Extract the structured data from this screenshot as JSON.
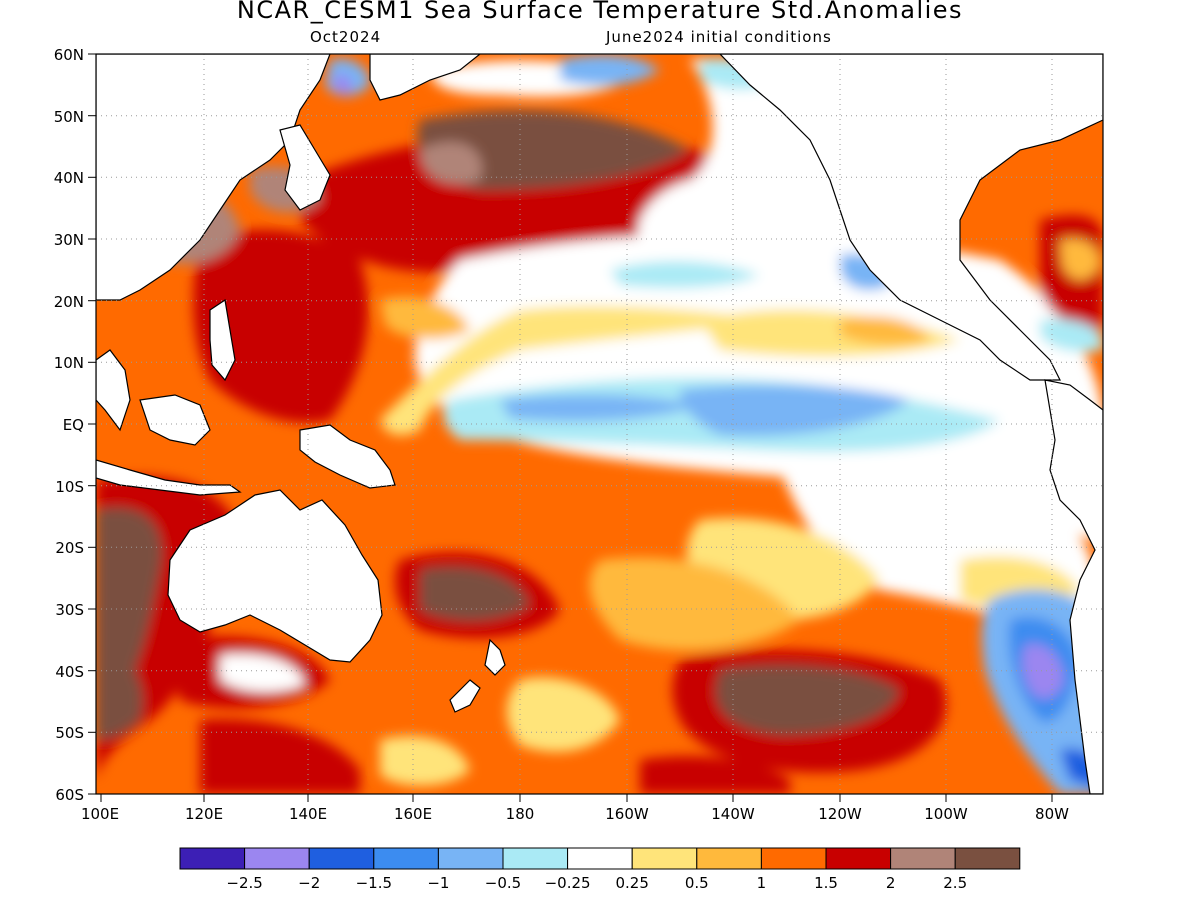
{
  "title": "NCAR_CESM1 Sea Surface Temperature Std.Anomalies",
  "subtitle_left": "Oct2024",
  "subtitle_right": "June2024 initial conditions",
  "lat_labels": [
    "60N",
    "50N",
    "40N",
    "30N",
    "20N",
    "10N",
    "EQ",
    "10S",
    "20S",
    "30S",
    "40S",
    "50S",
    "60S"
  ],
  "lon_labels": [
    "100E",
    "120E",
    "140E",
    "160E",
    "180",
    "160W",
    "140W",
    "120W",
    "100W",
    "80W"
  ],
  "colorbar": {
    "colors": [
      "#3c1fb5",
      "#9b86f0",
      "#1f5fe0",
      "#3c8cf0",
      "#78b4f5",
      "#aaeaf5",
      "#ffffff",
      "#ffe47a",
      "#ffb93c",
      "#ff6a00",
      "#c80000",
      "#b08478",
      "#7a5040"
    ],
    "labels": [
      "-2.5",
      "-2",
      "-1.5",
      "-1",
      "-0.5",
      "-0.25",
      "0.25",
      "0.5",
      "1",
      "1.5",
      "2",
      "2.5"
    ]
  },
  "chart_data": {
    "type": "heatmap",
    "title": "NCAR_CESM1 Sea Surface Temperature Std.Anomalies",
    "lon_range": [
      "100E",
      "70W"
    ],
    "lat_range": [
      "60S",
      "60N"
    ],
    "grid": true,
    "legend": "bottom",
    "levels": [
      -2.5,
      -2,
      -1.5,
      -1,
      -0.5,
      -0.25,
      0.25,
      0.5,
      1,
      1.5,
      2,
      2.5
    ]
  }
}
